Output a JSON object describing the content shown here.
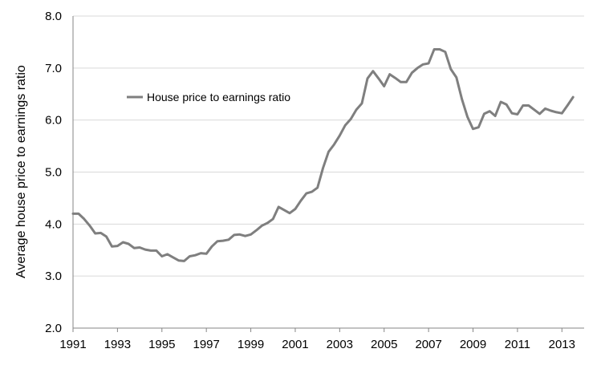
{
  "chart_data": {
    "type": "line",
    "title": "",
    "xlabel": "",
    "ylabel": "Average house price to earnings ratio",
    "xlim": [
      1991,
      2014
    ],
    "ylim": [
      2.0,
      8.0
    ],
    "y_ticks": [
      {
        "value": 2.0,
        "label": "2.0"
      },
      {
        "value": 3.0,
        "label": "3.0"
      },
      {
        "value": 4.0,
        "label": "4.0"
      },
      {
        "value": 5.0,
        "label": "5.0"
      },
      {
        "value": 6.0,
        "label": "6.0"
      },
      {
        "value": 7.0,
        "label": "7.0"
      },
      {
        "value": 8.0,
        "label": "8.0"
      }
    ],
    "x_ticks": [
      {
        "value": 1991,
        "label": "1991"
      },
      {
        "value": 1993,
        "label": "1993"
      },
      {
        "value": 1995,
        "label": "1995"
      },
      {
        "value": 1997,
        "label": "1997"
      },
      {
        "value": 1999,
        "label": "1999"
      },
      {
        "value": 2001,
        "label": "2001"
      },
      {
        "value": 2003,
        "label": "2003"
      },
      {
        "value": 2005,
        "label": "2005"
      },
      {
        "value": 2007,
        "label": "2007"
      },
      {
        "value": 2009,
        "label": "2009"
      },
      {
        "value": 2011,
        "label": "2011"
      },
      {
        "value": 2013,
        "label": "2013"
      }
    ],
    "grid": "horizontal",
    "legend_position": "top-left",
    "series": [
      {
        "name": "House price to earnings ratio",
        "color": "#7f7f7f",
        "x": [
          1991.0,
          1991.25,
          1991.5,
          1991.75,
          1992.0,
          1992.25,
          1992.5,
          1992.75,
          1993.0,
          1993.25,
          1993.5,
          1993.75,
          1994.0,
          1994.25,
          1994.5,
          1994.75,
          1995.0,
          1995.25,
          1995.5,
          1995.75,
          1996.0,
          1996.25,
          1996.5,
          1996.75,
          1997.0,
          1997.25,
          1997.5,
          1997.75,
          1998.0,
          1998.25,
          1998.5,
          1998.75,
          1999.0,
          1999.25,
          1999.5,
          1999.75,
          2000.0,
          2000.25,
          2000.5,
          2000.75,
          2001.0,
          2001.25,
          2001.5,
          2001.75,
          2002.0,
          2002.25,
          2002.5,
          2002.75,
          2003.0,
          2003.25,
          2003.5,
          2003.75,
          2004.0,
          2004.25,
          2004.5,
          2004.75,
          2005.0,
          2005.25,
          2005.5,
          2005.75,
          2006.0,
          2006.25,
          2006.5,
          2006.75,
          2007.0,
          2007.25,
          2007.5,
          2007.75,
          2008.0,
          2008.25,
          2008.5,
          2008.75,
          2009.0,
          2009.25,
          2009.5,
          2009.75,
          2010.0,
          2010.25,
          2010.5,
          2010.75,
          2011.0,
          2011.25,
          2011.5,
          2011.75,
          2012.0,
          2012.25,
          2012.5,
          2012.75,
          2013.0,
          2013.25,
          2013.5
        ],
        "values": [
          4.2,
          4.2,
          4.1,
          3.97,
          3.82,
          3.83,
          3.76,
          3.57,
          3.58,
          3.65,
          3.62,
          3.54,
          3.55,
          3.51,
          3.49,
          3.49,
          3.38,
          3.42,
          3.36,
          3.3,
          3.29,
          3.38,
          3.4,
          3.44,
          3.43,
          3.57,
          3.67,
          3.68,
          3.7,
          3.79,
          3.8,
          3.77,
          3.8,
          3.88,
          3.97,
          4.02,
          4.1,
          4.33,
          4.27,
          4.21,
          4.29,
          4.45,
          4.59,
          4.62,
          4.7,
          5.08,
          5.39,
          5.53,
          5.7,
          5.9,
          6.02,
          6.2,
          6.32,
          6.8,
          6.94,
          6.8,
          6.65,
          6.88,
          6.81,
          6.73,
          6.73,
          6.91,
          7.0,
          7.07,
          7.09,
          7.36,
          7.36,
          7.31,
          6.98,
          6.82,
          6.4,
          6.06,
          5.83,
          5.86,
          6.12,
          6.17,
          6.08,
          6.35,
          6.3,
          6.13,
          6.11,
          6.28,
          6.28,
          6.2,
          6.12,
          6.22,
          6.18,
          6.15,
          6.13,
          6.28,
          6.44
        ]
      }
    ]
  }
}
